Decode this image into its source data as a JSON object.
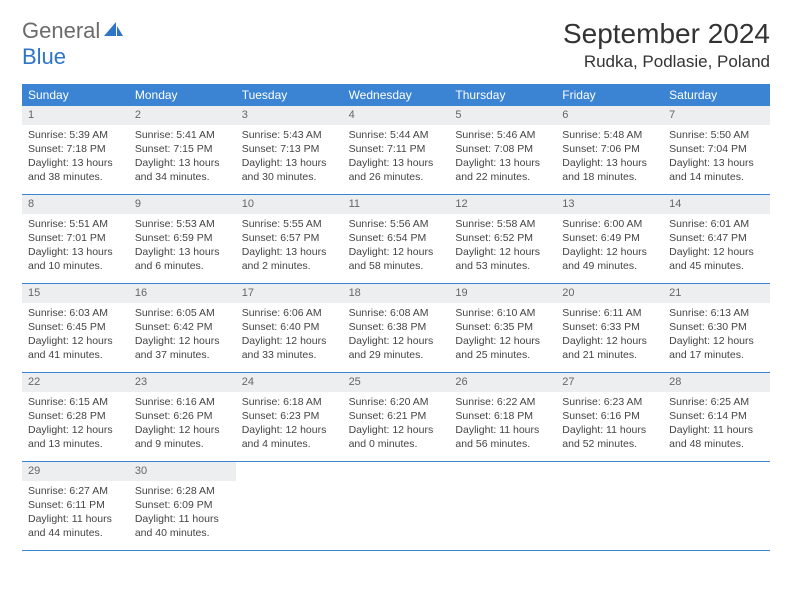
{
  "logo": {
    "general": "General",
    "blue": "Blue"
  },
  "title": "September 2024",
  "location": "Rudka, Podlasie, Poland",
  "colors": {
    "header_bg": "#3b84d4",
    "day_number_bg": "#eceeef",
    "accent": "#2e75c9"
  },
  "day_names": [
    "Sunday",
    "Monday",
    "Tuesday",
    "Wednesday",
    "Thursday",
    "Friday",
    "Saturday"
  ],
  "weeks": [
    [
      {
        "n": "1",
        "sunrise": "5:39 AM",
        "sunset": "7:18 PM",
        "dl": "13 hours and 38 minutes."
      },
      {
        "n": "2",
        "sunrise": "5:41 AM",
        "sunset": "7:15 PM",
        "dl": "13 hours and 34 minutes."
      },
      {
        "n": "3",
        "sunrise": "5:43 AM",
        "sunset": "7:13 PM",
        "dl": "13 hours and 30 minutes."
      },
      {
        "n": "4",
        "sunrise": "5:44 AM",
        "sunset": "7:11 PM",
        "dl": "13 hours and 26 minutes."
      },
      {
        "n": "5",
        "sunrise": "5:46 AM",
        "sunset": "7:08 PM",
        "dl": "13 hours and 22 minutes."
      },
      {
        "n": "6",
        "sunrise": "5:48 AM",
        "sunset": "7:06 PM",
        "dl": "13 hours and 18 minutes."
      },
      {
        "n": "7",
        "sunrise": "5:50 AM",
        "sunset": "7:04 PM",
        "dl": "13 hours and 14 minutes."
      }
    ],
    [
      {
        "n": "8",
        "sunrise": "5:51 AM",
        "sunset": "7:01 PM",
        "dl": "13 hours and 10 minutes."
      },
      {
        "n": "9",
        "sunrise": "5:53 AM",
        "sunset": "6:59 PM",
        "dl": "13 hours and 6 minutes."
      },
      {
        "n": "10",
        "sunrise": "5:55 AM",
        "sunset": "6:57 PM",
        "dl": "13 hours and 2 minutes."
      },
      {
        "n": "11",
        "sunrise": "5:56 AM",
        "sunset": "6:54 PM",
        "dl": "12 hours and 58 minutes."
      },
      {
        "n": "12",
        "sunrise": "5:58 AM",
        "sunset": "6:52 PM",
        "dl": "12 hours and 53 minutes."
      },
      {
        "n": "13",
        "sunrise": "6:00 AM",
        "sunset": "6:49 PM",
        "dl": "12 hours and 49 minutes."
      },
      {
        "n": "14",
        "sunrise": "6:01 AM",
        "sunset": "6:47 PM",
        "dl": "12 hours and 45 minutes."
      }
    ],
    [
      {
        "n": "15",
        "sunrise": "6:03 AM",
        "sunset": "6:45 PM",
        "dl": "12 hours and 41 minutes."
      },
      {
        "n": "16",
        "sunrise": "6:05 AM",
        "sunset": "6:42 PM",
        "dl": "12 hours and 37 minutes."
      },
      {
        "n": "17",
        "sunrise": "6:06 AM",
        "sunset": "6:40 PM",
        "dl": "12 hours and 33 minutes."
      },
      {
        "n": "18",
        "sunrise": "6:08 AM",
        "sunset": "6:38 PM",
        "dl": "12 hours and 29 minutes."
      },
      {
        "n": "19",
        "sunrise": "6:10 AM",
        "sunset": "6:35 PM",
        "dl": "12 hours and 25 minutes."
      },
      {
        "n": "20",
        "sunrise": "6:11 AM",
        "sunset": "6:33 PM",
        "dl": "12 hours and 21 minutes."
      },
      {
        "n": "21",
        "sunrise": "6:13 AM",
        "sunset": "6:30 PM",
        "dl": "12 hours and 17 minutes."
      }
    ],
    [
      {
        "n": "22",
        "sunrise": "6:15 AM",
        "sunset": "6:28 PM",
        "dl": "12 hours and 13 minutes."
      },
      {
        "n": "23",
        "sunrise": "6:16 AM",
        "sunset": "6:26 PM",
        "dl": "12 hours and 9 minutes."
      },
      {
        "n": "24",
        "sunrise": "6:18 AM",
        "sunset": "6:23 PM",
        "dl": "12 hours and 4 minutes."
      },
      {
        "n": "25",
        "sunrise": "6:20 AM",
        "sunset": "6:21 PM",
        "dl": "12 hours and 0 minutes."
      },
      {
        "n": "26",
        "sunrise": "6:22 AM",
        "sunset": "6:18 PM",
        "dl": "11 hours and 56 minutes."
      },
      {
        "n": "27",
        "sunrise": "6:23 AM",
        "sunset": "6:16 PM",
        "dl": "11 hours and 52 minutes."
      },
      {
        "n": "28",
        "sunrise": "6:25 AM",
        "sunset": "6:14 PM",
        "dl": "11 hours and 48 minutes."
      }
    ],
    [
      {
        "n": "29",
        "sunrise": "6:27 AM",
        "sunset": "6:11 PM",
        "dl": "11 hours and 44 minutes."
      },
      {
        "n": "30",
        "sunrise": "6:28 AM",
        "sunset": "6:09 PM",
        "dl": "11 hours and 40 minutes."
      },
      null,
      null,
      null,
      null,
      null
    ]
  ],
  "labels": {
    "sunrise": "Sunrise:",
    "sunset": "Sunset:",
    "daylight": "Daylight:"
  }
}
